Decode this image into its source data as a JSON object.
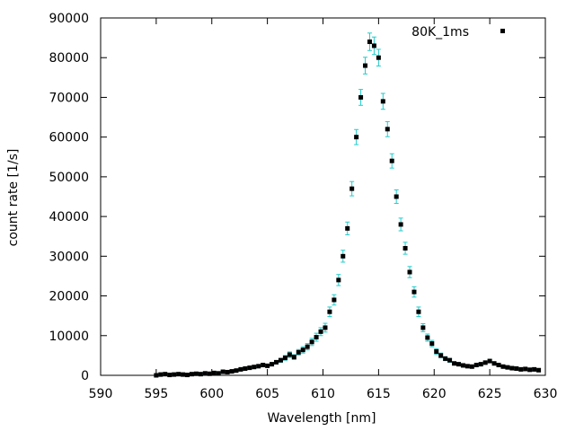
{
  "chart_data": {
    "type": "scatter",
    "xlabel": "Wavelength [nm]",
    "ylabel": "count rate [1/s]",
    "xlim": [
      590,
      630
    ],
    "ylim": [
      0,
      90000
    ],
    "x_ticks": [
      "590",
      "595",
      "600",
      "605",
      "610",
      "615",
      "620",
      "625",
      "630"
    ],
    "y_ticks": [
      "0",
      "10000",
      "20000",
      "30000",
      "40000",
      "50000",
      "60000",
      "70000",
      "80000",
      "90000"
    ],
    "grid": false,
    "legend_position": "top-right",
    "error_bar_color": "#22cccc",
    "point_color": "#000000",
    "series": [
      {
        "name": "80K_1ms",
        "x": [
          595.0,
          595.4,
          595.8,
          596.2,
          596.6,
          597.0,
          597.4,
          597.8,
          598.2,
          598.6,
          599.0,
          599.4,
          599.8,
          600.2,
          600.6,
          601.0,
          601.4,
          601.8,
          602.2,
          602.6,
          603.0,
          603.4,
          603.8,
          604.2,
          604.6,
          605.0,
          605.4,
          605.8,
          606.2,
          606.6,
          607.0,
          607.4,
          607.8,
          608.2,
          608.6,
          609.0,
          609.4,
          609.8,
          610.2,
          610.6,
          611.0,
          611.4,
          611.8,
          612.2,
          612.6,
          613.0,
          613.4,
          613.8,
          614.2,
          614.6,
          615.0,
          615.4,
          615.8,
          616.2,
          616.6,
          617.0,
          617.4,
          617.8,
          618.2,
          618.6,
          619.0,
          619.4,
          619.8,
          620.2,
          620.6,
          621.0,
          621.4,
          621.8,
          622.2,
          622.6,
          623.0,
          623.4,
          623.8,
          624.2,
          624.6,
          625.0,
          625.4,
          625.8,
          626.2,
          626.6,
          627.0,
          627.4,
          627.8,
          628.2,
          628.6,
          629.0,
          629.4
        ],
        "y": [
          0,
          200,
          300,
          100,
          200,
          300,
          200,
          100,
          300,
          400,
          300,
          500,
          400,
          600,
          500,
          900,
          800,
          1000,
          1200,
          1500,
          1700,
          1900,
          2100,
          2300,
          2600,
          2400,
          2800,
          3300,
          3800,
          4400,
          5200,
          4600,
          5800,
          6400,
          7200,
          8400,
          9600,
          11000,
          12000,
          16000,
          19000,
          24000,
          30000,
          37000,
          47000,
          60000,
          70000,
          78000,
          84000,
          83000,
          80000,
          69000,
          62000,
          54000,
          45000,
          38000,
          32000,
          26000,
          21000,
          16000,
          12000,
          9500,
          8000,
          6000,
          5000,
          4200,
          3800,
          3000,
          2800,
          2500,
          2300,
          2200,
          2600,
          2800,
          3200,
          3600,
          3000,
          2600,
          2200,
          2000,
          1800,
          1700,
          1500,
          1600,
          1400,
          1500,
          1300
        ],
        "yerr": [
          200,
          200,
          200,
          200,
          200,
          200,
          200,
          200,
          200,
          200,
          200,
          200,
          200,
          200,
          200,
          200,
          200,
          200,
          200,
          300,
          300,
          300,
          300,
          300,
          300,
          300,
          400,
          400,
          500,
          600,
          700,
          600,
          700,
          800,
          800,
          900,
          1000,
          1000,
          1100,
          1200,
          1300,
          1400,
          1500,
          1600,
          1800,
          1900,
          2000,
          2100,
          2200,
          2200,
          2100,
          2000,
          1900,
          1800,
          1700,
          1600,
          1500,
          1400,
          1300,
          1200,
          1000,
          900,
          800,
          700,
          600,
          500,
          500,
          400,
          400,
          400,
          300,
          300,
          300,
          300,
          300,
          400,
          300,
          300,
          300,
          300,
          300,
          300,
          300,
          300,
          300,
          300,
          300
        ]
      }
    ]
  }
}
